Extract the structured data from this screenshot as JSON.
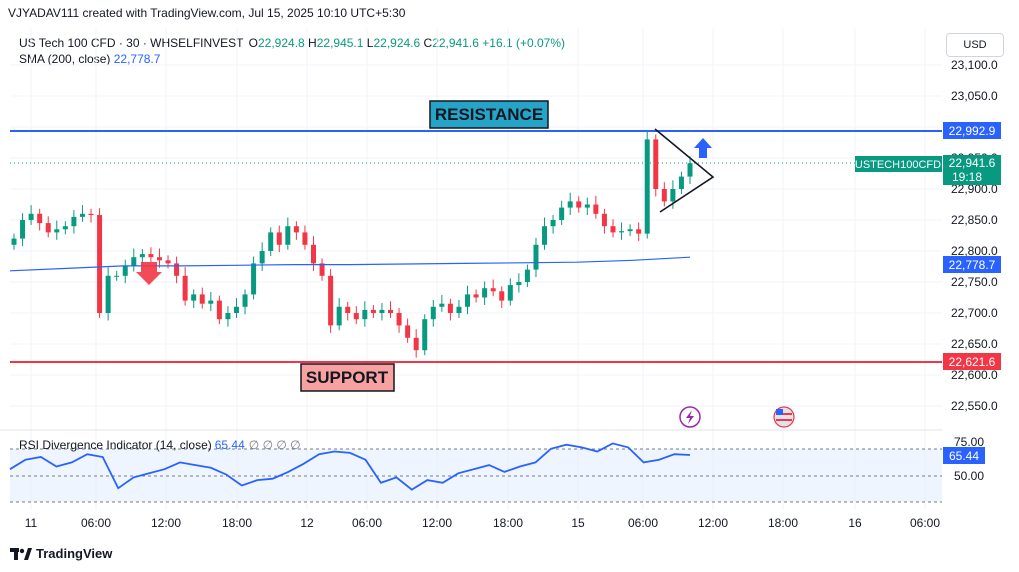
{
  "header": {
    "credit": "VJYADAV111 created with TradingView.com, Jul 15, 2025 10:10 UTC+5:30"
  },
  "legend": {
    "symbol": "US Tech 100 CFD · 30 · WHSELFINVEST",
    "o_label": "O",
    "o_value": "22,924.8",
    "h_label": "H",
    "h_value": "22,945.1",
    "l_label": "L",
    "l_value": "22,924.6",
    "c_label": "C",
    "c_value": "22,941.6",
    "change": "+16.1 (+0.07%)",
    "sma_label": "SMA (200, close)",
    "sma_value": "22,778.7"
  },
  "currency": "USD",
  "annotations": {
    "resistance": "RESISTANCE",
    "support": "SUPPORT"
  },
  "price_tags": {
    "resistance": "22,992.9",
    "symbol_name": "USTECH100CFD",
    "last_price": "22,941.6",
    "countdown": "19:18",
    "sma": "22,778.7",
    "support": "22,621.6",
    "rsi": "65.44"
  },
  "rsi": {
    "title": "RSI Divergence Indicator (14, close)",
    "value": "65.44",
    "zeros": "∅ ∅ ∅ ∅"
  },
  "footer": {
    "brand": "TradingView"
  },
  "colors": {
    "up": "#089981",
    "down": "#f23645",
    "resistance": "#2962ff",
    "support": "#f23645",
    "sma": "#2962ff",
    "rsi": "#2962ff"
  },
  "chart_data": {
    "type": "candlestick",
    "y_axis_ticks": [
      "23,100.0",
      "23,050.0",
      "23,000.0",
      "22,950.0",
      "22,900.0",
      "22,850.0",
      "22,800.0",
      "22,750.0",
      "22,700.0",
      "22,650.0",
      "22,600.0",
      "22,550.0"
    ],
    "x_axis_ticks": [
      "11",
      "06:00",
      "12:00",
      "18:00",
      "12",
      "06:00",
      "12:00",
      "18:00",
      "15",
      "06:00",
      "12:00",
      "18:00",
      "16",
      "06:00"
    ],
    "ylim": [
      22520,
      23140
    ],
    "resistance_level": 22992.9,
    "support_level": 22621.6,
    "sma_value": 22778.7,
    "close_series": [
      22820,
      22850,
      22860,
      22845,
      22830,
      22835,
      22840,
      22855,
      22860,
      22858,
      22700,
      22760,
      22760,
      22775,
      22790,
      22795,
      22790,
      22785,
      22780,
      22760,
      22720,
      22730,
      22715,
      22720,
      22690,
      22700,
      22710,
      22730,
      22780,
      22800,
      22830,
      22810,
      22840,
      22830,
      22810,
      22780,
      22760,
      22680,
      22710,
      22700,
      22690,
      22705,
      22700,
      22705,
      22700,
      22680,
      22660,
      22640,
      22690,
      22710,
      22715,
      22700,
      22710,
      22730,
      22725,
      22740,
      22735,
      22720,
      22745,
      22750,
      22770,
      22810,
      22840,
      22850,
      22870,
      22880,
      22870,
      22875,
      22860,
      22840,
      22830,
      22832,
      22835,
      22828,
      22980,
      22900,
      22880,
      22900,
      22920,
      22941.6
    ],
    "sma_series": [
      22768,
      22772,
      22776,
      22776,
      22777,
      22778,
      22778,
      22779,
      22780,
      22781,
      22782,
      22785,
      22790
    ],
    "rsi_series": [
      55,
      62,
      64,
      57,
      60,
      66,
      64,
      41,
      49,
      52,
      55,
      60,
      58,
      56,
      51,
      43,
      47,
      48,
      53,
      59,
      66,
      68,
      67,
      62,
      45,
      49,
      40,
      47,
      45,
      52,
      55,
      58,
      53,
      57,
      60,
      70,
      73,
      71,
      68,
      74,
      71,
      60,
      62,
      66,
      65.44
    ],
    "rsi_ticks": [
      "75.00",
      "50.00"
    ]
  }
}
